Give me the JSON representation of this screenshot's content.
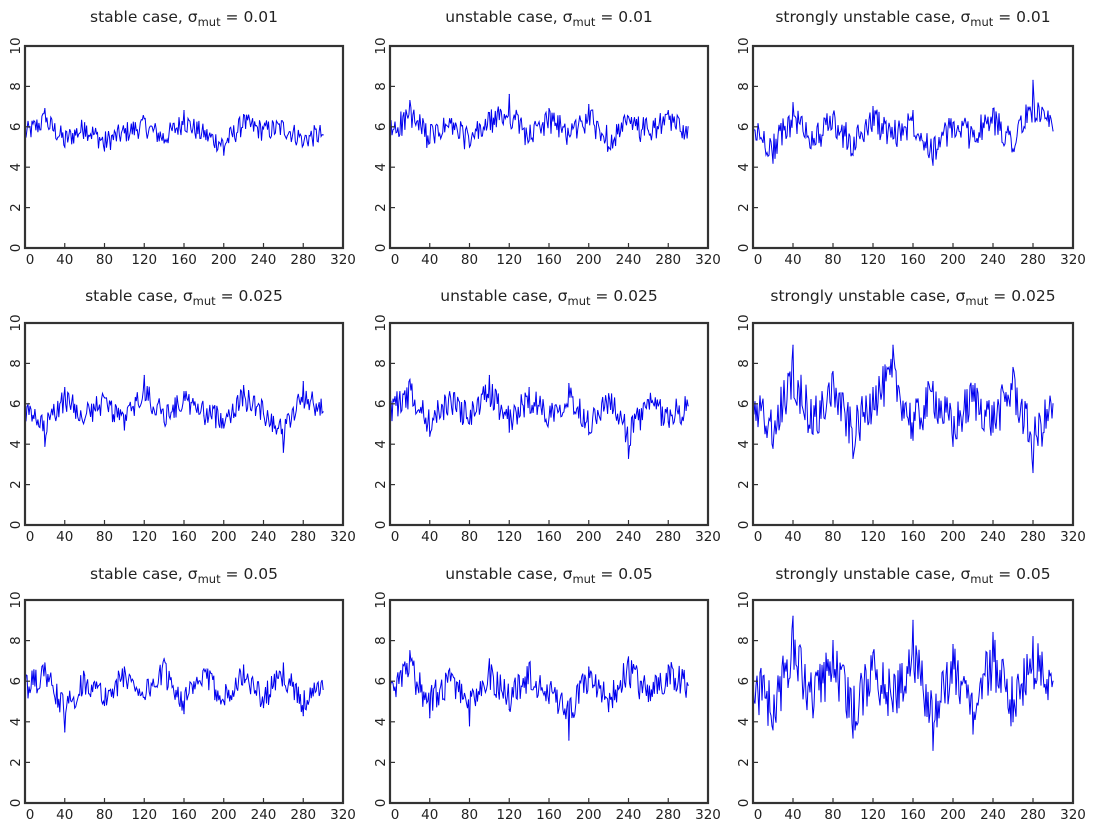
{
  "panels": [
    {
      "case": "stable case",
      "symbol": "σ",
      "sub": "mut",
      "value": "= 0.01"
    },
    {
      "case": "unstable case",
      "symbol": "σ",
      "sub": "mut",
      "value": "= 0.01"
    },
    {
      "case": "strongly unstable case",
      "symbol": "σ",
      "sub": "mut",
      "value": "= 0.01"
    },
    {
      "case": "stable case",
      "symbol": "σ",
      "sub": "mut",
      "value": "= 0.025"
    },
    {
      "case": "unstable case",
      "symbol": "σ",
      "sub": "mut",
      "value": "= 0.025"
    },
    {
      "case": "strongly unstable case",
      "symbol": "σ",
      "sub": "mut",
      "value": "= 0.025"
    },
    {
      "case": "stable case",
      "symbol": "σ",
      "sub": "mut",
      "value": "= 0.05"
    },
    {
      "case": "unstable case",
      "symbol": "σ",
      "sub": "mut",
      "value": "= 0.05"
    },
    {
      "case": "strongly unstable case",
      "symbol": "σ",
      "sub": "mut",
      "value": "= 0.05"
    }
  ],
  "chart_data": [
    {
      "type": "line",
      "title": "stable case, σmut = 0.01",
      "xlim": [
        0,
        320
      ],
      "ylim": [
        0,
        10
      ],
      "xticks": [
        "0",
        "40",
        "80",
        "120",
        "160",
        "200",
        "240",
        "280",
        "320"
      ],
      "yticks": [
        "0",
        "2",
        "4",
        "6",
        "8",
        "10"
      ],
      "series_color": "#0000ee",
      "x": [
        0,
        20,
        40,
        60,
        80,
        100,
        120,
        140,
        160,
        180,
        200,
        220,
        240,
        260,
        280,
        300
      ],
      "y": [
        5.6,
        6.9,
        5.0,
        6.2,
        4.8,
        5.7,
        6.4,
        5.2,
        6.8,
        5.5,
        4.6,
        6.6,
        5.9,
        6.2,
        5.1,
        5.6
      ]
    },
    {
      "type": "line",
      "title": "unstable case, σmut = 0.01",
      "xlim": [
        0,
        320
      ],
      "ylim": [
        0,
        10
      ],
      "xticks": [
        "0",
        "40",
        "80",
        "120",
        "160",
        "200",
        "240",
        "280",
        "320"
      ],
      "yticks": [
        "0",
        "2",
        "4",
        "6",
        "8",
        "10"
      ],
      "series_color": "#0000ee",
      "x": [
        0,
        20,
        40,
        60,
        80,
        100,
        120,
        140,
        160,
        180,
        200,
        220,
        240,
        260,
        280,
        300
      ],
      "y": [
        5.8,
        7.3,
        5.2,
        6.4,
        5.0,
        6.7,
        7.6,
        5.3,
        6.9,
        5.6,
        7.1,
        5.0,
        6.5,
        5.8,
        6.8,
        6.0
      ]
    },
    {
      "type": "line",
      "title": "strongly unstable case, σmut = 0.01",
      "xlim": [
        0,
        320
      ],
      "ylim": [
        0,
        10
      ],
      "xticks": [
        "0",
        "40",
        "80",
        "120",
        "160",
        "200",
        "240",
        "280",
        "320"
      ],
      "yticks": [
        "0",
        "2",
        "4",
        "6",
        "8",
        "10"
      ],
      "series_color": "#0000ee",
      "x": [
        0,
        20,
        40,
        60,
        80,
        100,
        120,
        140,
        160,
        180,
        200,
        220,
        240,
        260,
        280,
        300
      ],
      "y": [
        6.0,
        4.2,
        7.2,
        5.1,
        6.6,
        4.6,
        7.0,
        5.4,
        6.8,
        4.1,
        6.2,
        5.5,
        6.9,
        4.9,
        8.3,
        5.8
      ]
    },
    {
      "type": "line",
      "title": "stable case, σmut = 0.025",
      "xlim": [
        0,
        320
      ],
      "ylim": [
        0,
        10
      ],
      "xticks": [
        "0",
        "40",
        "80",
        "120",
        "160",
        "200",
        "240",
        "280",
        "320"
      ],
      "yticks": [
        "0",
        "2",
        "4",
        "6",
        "8",
        "10"
      ],
      "series_color": "#0000ee",
      "x": [
        0,
        20,
        40,
        60,
        80,
        100,
        120,
        140,
        160,
        180,
        200,
        220,
        240,
        260,
        280,
        300
      ],
      "y": [
        5.5,
        3.9,
        6.8,
        5.2,
        6.3,
        4.7,
        7.4,
        5.1,
        6.6,
        5.4,
        4.8,
        6.9,
        5.5,
        3.6,
        7.1,
        5.6
      ]
    },
    {
      "type": "line",
      "title": "unstable case, σmut = 0.025",
      "xlim": [
        0,
        320
      ],
      "ylim": [
        0,
        10
      ],
      "xticks": [
        "0",
        "40",
        "80",
        "120",
        "160",
        "200",
        "240",
        "280",
        "320"
      ],
      "yticks": [
        "0",
        "2",
        "4",
        "6",
        "8",
        "10"
      ],
      "series_color": "#0000ee",
      "x": [
        0,
        20,
        40,
        60,
        80,
        100,
        120,
        140,
        160,
        180,
        200,
        220,
        240,
        260,
        280,
        300
      ],
      "y": [
        5.8,
        7.2,
        4.4,
        6.6,
        5.0,
        7.4,
        4.6,
        6.8,
        5.3,
        7.0,
        4.5,
        6.5,
        3.3,
        6.2,
        5.1,
        5.9
      ]
    },
    {
      "type": "line",
      "title": "strongly unstable case, σmut = 0.025",
      "xlim": [
        0,
        320
      ],
      "ylim": [
        0,
        10
      ],
      "xticks": [
        "0",
        "40",
        "80",
        "120",
        "160",
        "200",
        "240",
        "280",
        "320"
      ],
      "yticks": [
        "0",
        "2",
        "4",
        "6",
        "8",
        "10"
      ],
      "series_color": "#0000ee",
      "x": [
        0,
        20,
        40,
        60,
        80,
        100,
        120,
        140,
        160,
        180,
        200,
        220,
        240,
        260,
        280,
        300
      ],
      "y": [
        5.9,
        3.8,
        8.9,
        4.5,
        7.6,
        3.3,
        6.8,
        8.9,
        4.2,
        7.1,
        3.9,
        6.9,
        4.6,
        7.8,
        2.6,
        6.0
      ]
    },
    {
      "type": "line",
      "title": "stable case, σmut = 0.05",
      "xlim": [
        0,
        320
      ],
      "ylim": [
        0,
        10
      ],
      "xticks": [
        "0",
        "40",
        "80",
        "120",
        "160",
        "200",
        "240",
        "280",
        "320"
      ],
      "yticks": [
        "0",
        "2",
        "4",
        "6",
        "8",
        "10"
      ],
      "series_color": "#0000ee",
      "x": [
        0,
        20,
        40,
        60,
        80,
        100,
        120,
        140,
        160,
        180,
        200,
        220,
        240,
        260,
        280,
        300
      ],
      "y": [
        5.6,
        6.9,
        3.5,
        6.3,
        4.8,
        6.7,
        5.2,
        7.1,
        4.4,
        6.6,
        5.0,
        6.8,
        4.7,
        6.9,
        4.3,
        5.6
      ]
    },
    {
      "type": "line",
      "title": "unstable case, σmut = 0.05",
      "xlim": [
        0,
        320
      ],
      "ylim": [
        0,
        10
      ],
      "xticks": [
        "0",
        "40",
        "80",
        "120",
        "160",
        "200",
        "240",
        "280",
        "320"
      ],
      "yticks": [
        "0",
        "2",
        "4",
        "6",
        "8",
        "10"
      ],
      "series_color": "#0000ee",
      "x": [
        0,
        20,
        40,
        60,
        80,
        100,
        120,
        140,
        160,
        180,
        200,
        220,
        240,
        260,
        280,
        300
      ],
      "y": [
        5.7,
        7.5,
        4.2,
        6.6,
        3.8,
        7.1,
        4.6,
        6.9,
        4.9,
        3.1,
        6.7,
        4.5,
        7.2,
        5.0,
        6.8,
        5.8
      ]
    },
    {
      "type": "line",
      "title": "strongly unstable case, σmut = 0.05",
      "xlim": [
        0,
        320
      ],
      "ylim": [
        0,
        10
      ],
      "xticks": [
        "0",
        "40",
        "80",
        "120",
        "160",
        "200",
        "240",
        "280",
        "320"
      ],
      "yticks": [
        "0",
        "2",
        "4",
        "6",
        "8",
        "10"
      ],
      "series_color": "#0000ee",
      "x": [
        0,
        20,
        40,
        60,
        80,
        100,
        120,
        140,
        160,
        180,
        200,
        220,
        240,
        260,
        280,
        300
      ],
      "y": [
        6.0,
        3.6,
        9.2,
        4.2,
        8.0,
        3.2,
        7.4,
        4.5,
        9.0,
        2.6,
        7.8,
        3.4,
        8.4,
        4.0,
        8.2,
        6.0
      ]
    }
  ]
}
